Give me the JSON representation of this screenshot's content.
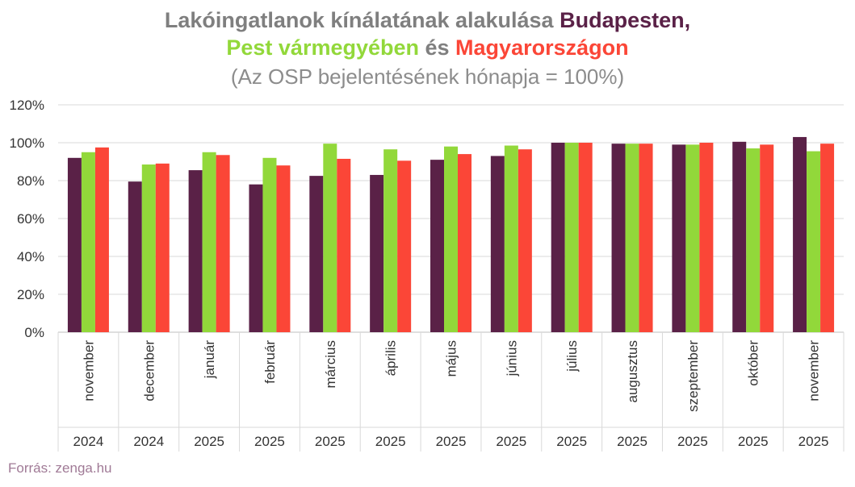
{
  "title": {
    "line1_prefix": "Lakóingatlanok kínálatának alakulása ",
    "line1_highlight": "Budapesten,",
    "line2_a": "Pest vármegyében",
    "line2_mid": " és ",
    "line2_b": "Magyarországon",
    "line3": "(Az OSP bejelentésének hónapja = 100%)"
  },
  "source": "Forrás: zenga.hu",
  "colors": {
    "budapest": "#5a2147",
    "pest": "#92d83a",
    "magyarorszag": "#fb4637",
    "grid": "#d9d9d9",
    "title_grey": "#7f7f7f"
  },
  "chart_data": {
    "type": "bar",
    "categories": [
      "november",
      "december",
      "január",
      "február",
      "március",
      "április",
      "május",
      "június",
      "július",
      "augusztus",
      "szeptember",
      "október",
      "november"
    ],
    "years": [
      "2024",
      "2024",
      "2025",
      "2025",
      "2025",
      "2025",
      "2025",
      "2025",
      "2025",
      "2025",
      "2025",
      "2025",
      "2025"
    ],
    "series": [
      {
        "name": "Budapesten",
        "color": "#5a2147",
        "values": [
          92,
          79.5,
          85.5,
          78,
          82.5,
          83,
          91,
          93,
          100,
          99.5,
          99,
          100.5,
          103
        ]
      },
      {
        "name": "Pest vármegyében",
        "color": "#92d83a",
        "values": [
          95,
          88.5,
          95,
          92,
          99.5,
          96.5,
          98,
          98.5,
          100,
          99.5,
          99,
          97,
          95.5
        ]
      },
      {
        "name": "Magyarországon",
        "color": "#fb4637",
        "values": [
          97.5,
          89,
          93.5,
          88,
          91.5,
          90.5,
          94,
          96.5,
          100,
          99.5,
          100,
          99,
          99.5
        ]
      }
    ],
    "yticks": [
      "0%",
      "20%",
      "40%",
      "60%",
      "80%",
      "100%",
      "120%"
    ],
    "ylim": [
      0,
      120
    ],
    "grid": true,
    "legend": "in title"
  }
}
